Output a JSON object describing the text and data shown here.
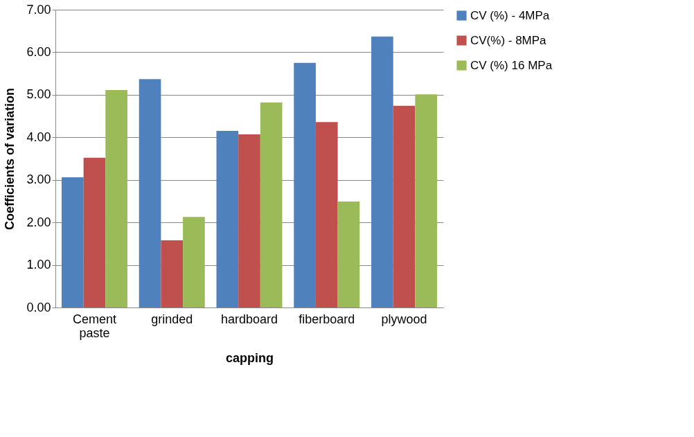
{
  "chart_data": {
    "type": "bar",
    "xlabel": "capping",
    "ylabel": "Coefficients of variation",
    "categories": [
      "Cement paste",
      "grinded",
      "hardboard",
      "fiberboard",
      "plywood"
    ],
    "series": [
      {
        "name": "CV (%) - 4MPa",
        "color": "#4f81bd",
        "values": [
          3.06,
          5.37,
          4.15,
          5.75,
          6.37
        ]
      },
      {
        "name": "CV(%) - 8MPa",
        "color": "#c0504d",
        "values": [
          3.52,
          1.58,
          4.07,
          4.36,
          4.74
        ]
      },
      {
        "name": "CV (%) 16 MPa",
        "color": "#9bbb59",
        "values": [
          5.11,
          2.13,
          4.82,
          2.49,
          5.01
        ]
      }
    ],
    "ylim": [
      0,
      7
    ],
    "yticks": [
      {
        "value": 0,
        "label": "0.00"
      },
      {
        "value": 1,
        "label": "1.00"
      },
      {
        "value": 2,
        "label": "2.00"
      },
      {
        "value": 3,
        "label": "3.00"
      },
      {
        "value": 4,
        "label": "4.00"
      },
      {
        "value": 5,
        "label": "5.00"
      },
      {
        "value": 6,
        "label": "6.00"
      },
      {
        "value": 7,
        "label": "7.00"
      }
    ],
    "grid": "y",
    "legend": "right"
  }
}
